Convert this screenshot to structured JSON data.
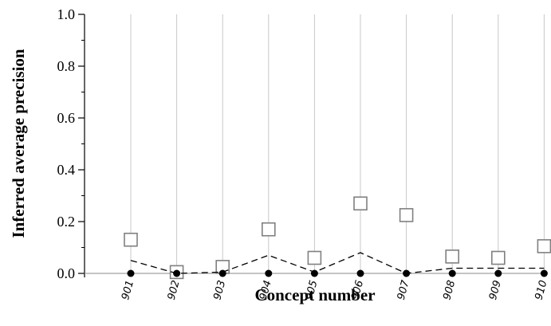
{
  "chart_data": {
    "type": "line",
    "title": "",
    "xlabel": "Concept number",
    "ylabel": "Inferred average precision",
    "categories": [
      "901",
      "902",
      "903",
      "904",
      "905",
      "906",
      "907",
      "908",
      "909",
      "910"
    ],
    "ylim": [
      0,
      1.0
    ],
    "yticks": [
      "0.0",
      "0.2",
      "0.4",
      "0.6",
      "0.8",
      "1.0"
    ],
    "grid": "vertical",
    "series": [
      {
        "marker": "open-square",
        "line": "none",
        "color": "#808080",
        "values": [
          0.13,
          0.005,
          0.025,
          0.17,
          0.06,
          0.27,
          0.225,
          0.065,
          0.06,
          0.105
        ]
      },
      {
        "marker": "none",
        "line": "dashed",
        "color": "#000000",
        "values": [
          0.05,
          0.0,
          0.005,
          0.07,
          0.005,
          0.08,
          0.0,
          0.02,
          0.02,
          0.02
        ]
      },
      {
        "marker": "filled-circle",
        "line": "none",
        "color": "#000000",
        "values": [
          0,
          0,
          0,
          0,
          0,
          0,
          0,
          0,
          0,
          0
        ]
      }
    ]
  }
}
